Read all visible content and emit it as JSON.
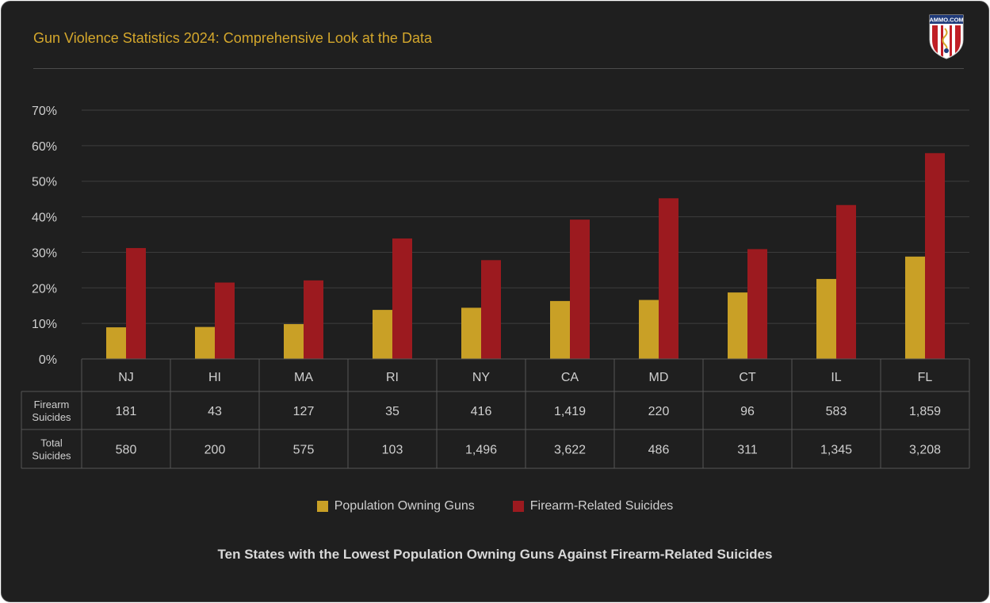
{
  "header": {
    "title": "Gun Violence Statistics 2024: Comprehensive Look at the Data",
    "logo_text": "AMMO.COM"
  },
  "colors": {
    "accent": "#d4a72c",
    "series_gun": "#c9a026",
    "series_suicide": "#9c1a1f",
    "background": "#1f1f1f",
    "grid": "#3f3f3f",
    "text": "#cfcfcf"
  },
  "chart_data": {
    "type": "bar",
    "title": "Ten States with the Lowest Population Owning Guns Against Firearm-Related Suicides",
    "categories": [
      "NJ",
      "HI",
      "MA",
      "RI",
      "NY",
      "CA",
      "MD",
      "CT",
      "IL",
      "FL"
    ],
    "series": [
      {
        "name": "Population Owning Guns",
        "values": [
          8.9,
          9.0,
          9.8,
          13.8,
          14.4,
          16.3,
          16.6,
          18.7,
          22.5,
          28.8
        ]
      },
      {
        "name": "Firearm-Related Suicides",
        "values": [
          31.2,
          21.5,
          22.1,
          33.9,
          27.8,
          39.2,
          45.2,
          30.9,
          43.3,
          57.9
        ]
      }
    ],
    "ylim": [
      0,
      70
    ],
    "yticks": [
      "0%",
      "10%",
      "20%",
      "30%",
      "40%",
      "50%",
      "60%",
      "70%"
    ],
    "grid": true,
    "legend": "bottom-center",
    "table": {
      "row_labels": [
        [
          "Firearm",
          "Suicides"
        ],
        [
          "Total",
          "Suicides"
        ]
      ],
      "rows": [
        [
          "181",
          "43",
          "127",
          "35",
          "416",
          "1,419",
          "220",
          "96",
          "583",
          "1,859"
        ],
        [
          "580",
          "200",
          "575",
          "103",
          "1,496",
          "3,622",
          "486",
          "311",
          "1,345",
          "3,208"
        ]
      ]
    }
  }
}
